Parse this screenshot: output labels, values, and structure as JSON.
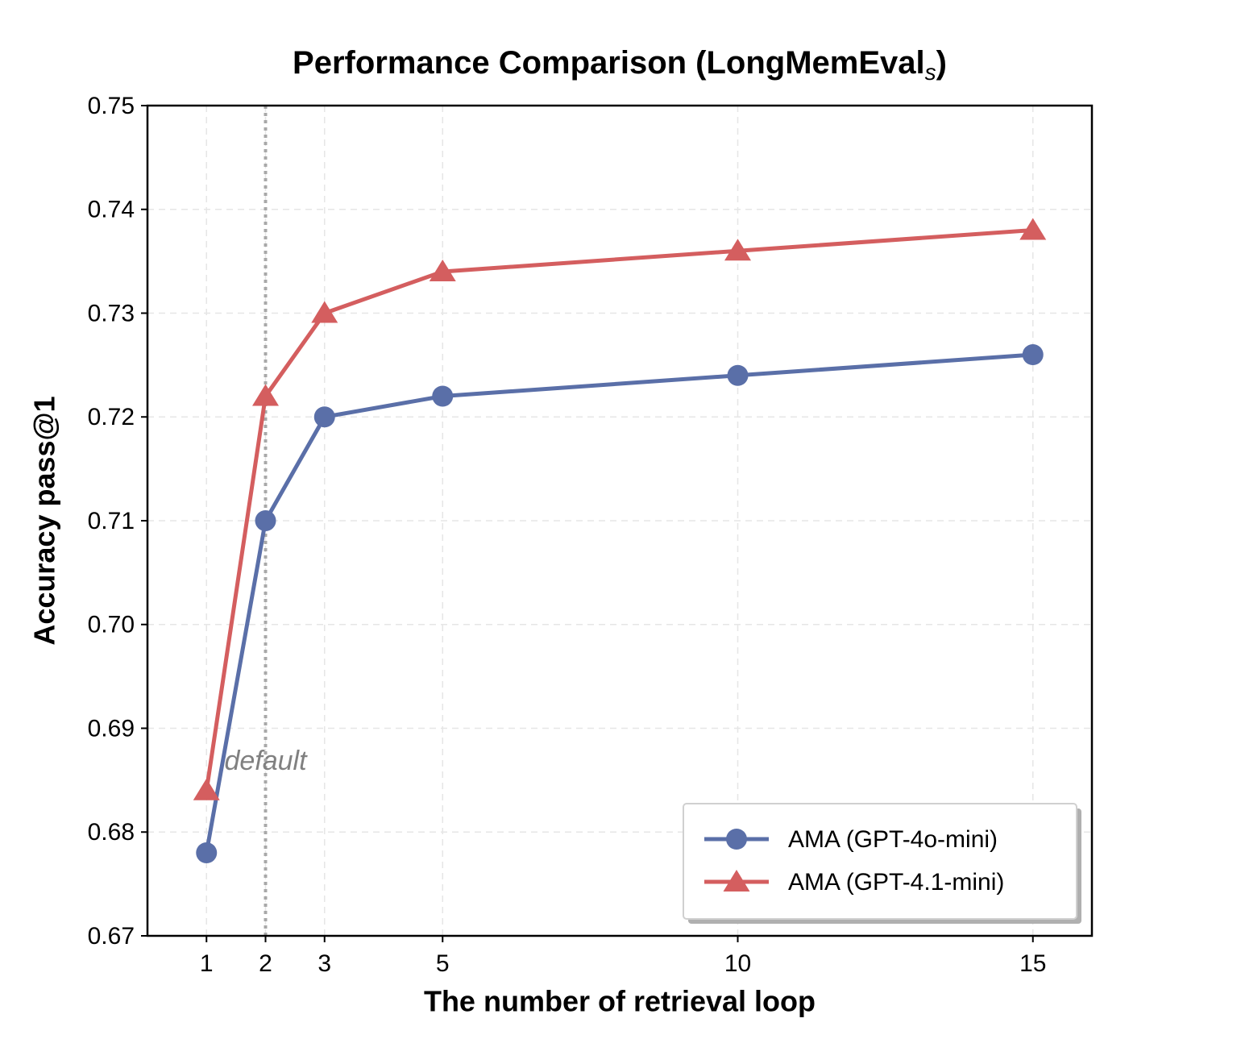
{
  "chart_data": {
    "type": "line",
    "title": [
      "Performance Comparison (LongMemEval",
      "s",
      ")"
    ],
    "xlabel": "The number of retrieval loop",
    "ylabel": "Accuracy pass@1",
    "x": [
      1,
      2,
      3,
      5,
      10,
      15
    ],
    "xlim": [
      0,
      16
    ],
    "xticks": [
      1,
      2,
      3,
      5,
      10,
      15
    ],
    "ylim": [
      0.67,
      0.75
    ],
    "yticks": [
      0.67,
      0.68,
      0.69,
      {
        "value": 0.7,
        "label": "0.70"
      },
      0.71,
      0.72,
      0.73,
      0.74,
      0.75
    ],
    "grid": true,
    "legend": "lower right",
    "vline": {
      "x": 2,
      "label": "default"
    },
    "series": [
      {
        "name": "AMA (GPT-4o-mini)",
        "color": "#5a6fa8",
        "marker": "circle",
        "values": [
          0.678,
          0.71,
          0.72,
          0.722,
          0.724,
          0.726
        ]
      },
      {
        "name": "AMA (GPT-4.1-mini)",
        "color": "#d45e5f",
        "marker": "triangle",
        "values": [
          0.684,
          0.722,
          0.73,
          0.734,
          0.736,
          0.738
        ]
      }
    ]
  }
}
